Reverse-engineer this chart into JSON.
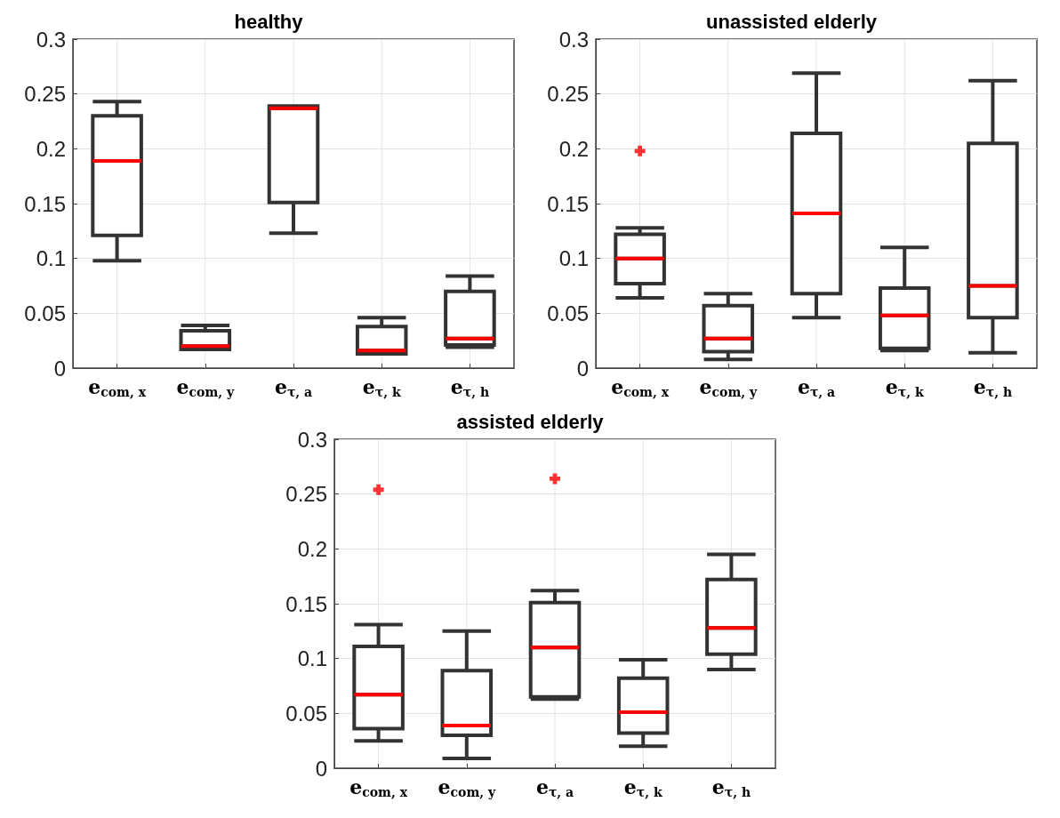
{
  "chart_data": [
    {
      "type": "box",
      "title": "healthy",
      "categories": [
        "e$_{com, x}$",
        "e$_{com, y}$",
        "e$_{τ, a}$",
        "e$_{τ, k}$",
        "e$_{τ, h}$"
      ],
      "ylim": [
        0,
        0.3
      ],
      "yticks": [
        0,
        0.05,
        0.1,
        0.15,
        0.2,
        0.25,
        0.3
      ],
      "grid": true,
      "series": [
        {
          "color": "#333333",
          "boxes": [
            {
              "low": 0.098,
              "q1": 0.121,
              "median": 0.189,
              "q3": 0.23,
              "high": 0.243
            },
            {
              "low": 0.017,
              "q1": 0.017,
              "median": 0.02,
              "q3": 0.034,
              "high": 0.039
            },
            {
              "low": 0.123,
              "q1": 0.151,
              "median": 0.237,
              "q3": 0.239,
              "high": 0.239
            },
            {
              "low": 0.013,
              "q1": 0.013,
              "median": 0.016,
              "q3": 0.038,
              "high": 0.046
            },
            {
              "low": 0.019,
              "q1": 0.021,
              "median": 0.027,
              "q3": 0.07,
              "high": 0.084
            }
          ]
        }
      ]
    },
    {
      "type": "box",
      "title": "unassisted elderly",
      "categories": [
        "e$_{com, x}$",
        "e$_{com, y}$",
        "e$_{τ, a}$",
        "e$_{τ, k}$",
        "e$_{τ, h}$"
      ],
      "ylim": [
        0,
        0.3
      ],
      "yticks": [
        0,
        0.05,
        0.1,
        0.15,
        0.2,
        0.25,
        0.3
      ],
      "grid": true,
      "series": [
        {
          "color": "#333333",
          "boxes": [
            {
              "low": 0.064,
              "q1": 0.077,
              "median": 0.1,
              "q3": 0.122,
              "high": 0.128,
              "outliers": [
                0.198
              ]
            },
            {
              "low": 0.008,
              "q1": 0.015,
              "median": 0.027,
              "q3": 0.057,
              "high": 0.068
            },
            {
              "low": 0.046,
              "q1": 0.068,
              "median": 0.141,
              "q3": 0.214,
              "high": 0.269
            },
            {
              "low": 0.016,
              "q1": 0.018,
              "median": 0.048,
              "q3": 0.073,
              "high": 0.11
            },
            {
              "low": 0.014,
              "q1": 0.046,
              "median": 0.075,
              "q3": 0.205,
              "high": 0.262
            }
          ]
        }
      ]
    },
    {
      "type": "box",
      "title": "assisted elderly",
      "categories": [
        "e$_{com, x}$",
        "e$_{com, y}$",
        "e$_{τ, a}$",
        "e$_{τ, k}$",
        "e$_{τ, h}$"
      ],
      "ylim": [
        0,
        0.3
      ],
      "yticks": [
        0,
        0.05,
        0.1,
        0.15,
        0.2,
        0.25,
        0.3
      ],
      "grid": true,
      "series": [
        {
          "color": "#333333",
          "boxes": [
            {
              "low": 0.025,
              "q1": 0.036,
              "median": 0.067,
              "q3": 0.111,
              "high": 0.131,
              "outliers": [
                0.254
              ]
            },
            {
              "low": 0.009,
              "q1": 0.03,
              "median": 0.039,
              "q3": 0.089,
              "high": 0.125
            },
            {
              "low": 0.063,
              "q1": 0.065,
              "median": 0.11,
              "q3": 0.151,
              "high": 0.162,
              "outliers": [
                0.264
              ]
            },
            {
              "low": 0.02,
              "q1": 0.032,
              "median": 0.051,
              "q3": 0.082,
              "high": 0.099
            },
            {
              "low": 0.09,
              "q1": 0.104,
              "median": 0.128,
              "q3": 0.172,
              "high": 0.195
            }
          ]
        }
      ]
    }
  ]
}
